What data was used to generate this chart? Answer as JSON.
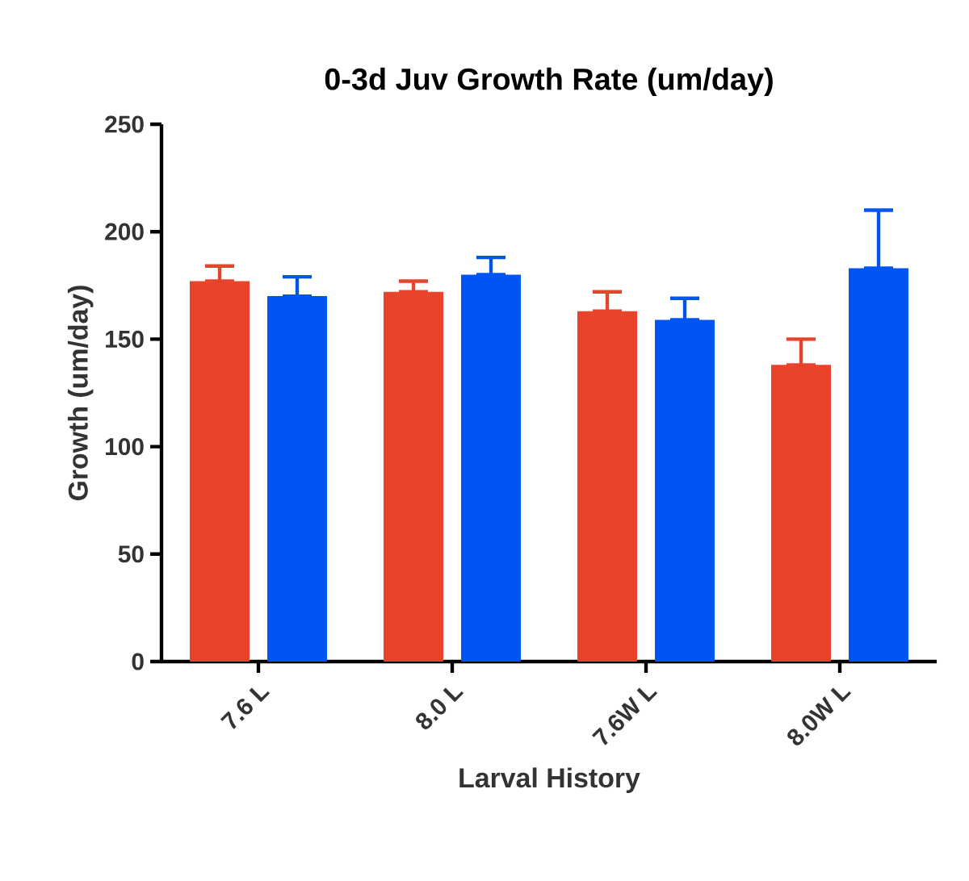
{
  "chart_data": {
    "type": "bar",
    "title": "0-3d Juv Growth Rate (um/day)",
    "xlabel": "Larval History",
    "ylabel": "Growth (um/day)",
    "categories": [
      "7.6 L",
      "8.0 L",
      "7.6W L",
      "8.0W L"
    ],
    "series": [
      {
        "color": "#e8432b",
        "values": [
          177,
          172,
          163,
          138
        ],
        "errors": [
          [
            177,
            184
          ],
          [
            172,
            177
          ],
          [
            163,
            172
          ],
          [
            138,
            150
          ]
        ]
      },
      {
        "color": "#0055f2",
        "values": [
          170,
          180,
          159,
          183
        ],
        "errors": [
          [
            170,
            179
          ],
          [
            180,
            188
          ],
          [
            159,
            169
          ],
          [
            183,
            210
          ]
        ]
      }
    ],
    "ylim": [
      0,
      250
    ],
    "yticks": [
      0,
      50,
      100,
      150,
      200,
      250
    ],
    "grid": false
  }
}
